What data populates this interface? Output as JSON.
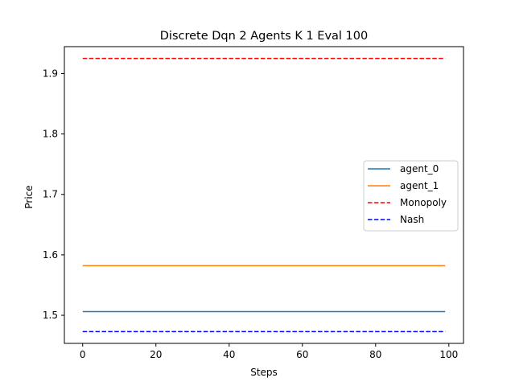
{
  "chart_data": {
    "type": "line",
    "title": "Discrete Dqn 2 Agents K 1 Eval 100",
    "xlabel": "Steps",
    "ylabel": "Price",
    "xlim": [
      -5,
      104
    ],
    "ylim": [
      1.4535,
      1.9445
    ],
    "xticks": [
      0,
      20,
      40,
      60,
      80,
      100
    ],
    "yticks": [
      1.5,
      1.6,
      1.7,
      1.8,
      1.9
    ],
    "xtick_labels": [
      "0",
      "20",
      "40",
      "60",
      "80",
      "100"
    ],
    "ytick_labels": [
      "1.5",
      "1.6",
      "1.7",
      "1.8",
      "1.9"
    ],
    "grid": false,
    "legend_position": "center-right",
    "series": [
      {
        "name": "agent_0",
        "style": "solid",
        "color": "#1f77b4",
        "x": [
          0,
          99
        ],
        "y": [
          1.506,
          1.506
        ]
      },
      {
        "name": "agent_1",
        "style": "solid",
        "color": "#ff7f0e",
        "x": [
          0,
          99
        ],
        "y": [
          1.582,
          1.582
        ]
      },
      {
        "name": "Monopoly",
        "style": "dashed",
        "color": "#ff0000",
        "x": [
          0,
          99
        ],
        "y": [
          1.925,
          1.925
        ]
      },
      {
        "name": "Nash",
        "style": "dashed",
        "color": "#0000ff",
        "x": [
          0,
          99
        ],
        "y": [
          1.473,
          1.473
        ]
      }
    ]
  }
}
